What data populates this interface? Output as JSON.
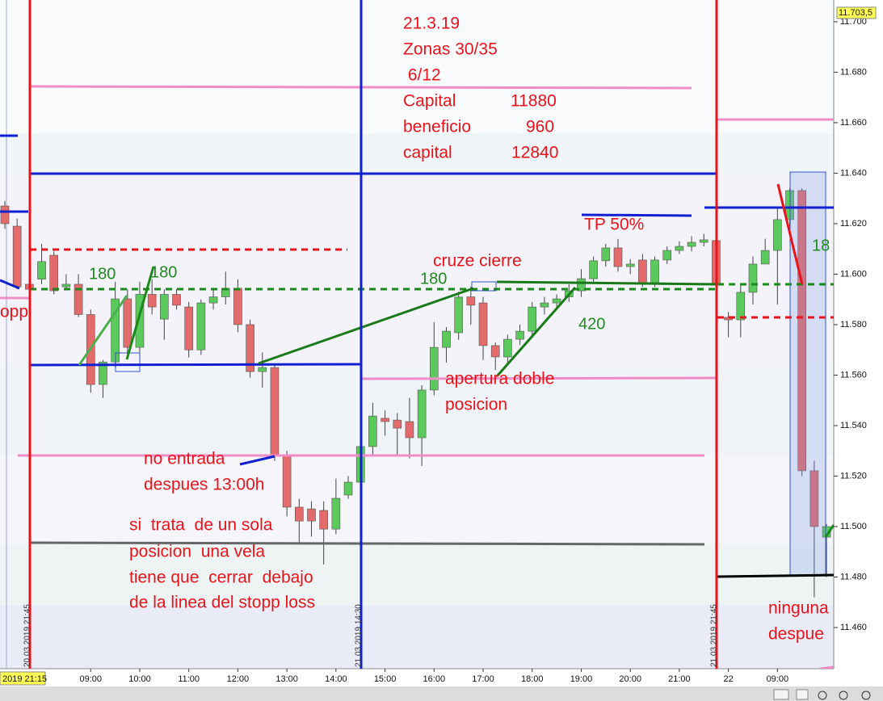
{
  "chart_data": {
    "type": "candlestick",
    "up_color": "#5cc95c",
    "down_color": "#e36b6b",
    "ylim": [
      11.4437,
      11.7086
    ],
    "yticks": [
      {
        "value": 11.46,
        "label": "11.460"
      },
      {
        "value": 11.48,
        "label": "11.480"
      },
      {
        "value": 11.5,
        "label": "11.500"
      },
      {
        "value": 11.52,
        "label": "11.520"
      },
      {
        "value": 11.54,
        "label": "11.540"
      },
      {
        "value": 11.56,
        "label": "11.560"
      },
      {
        "value": 11.58,
        "label": "11.580"
      },
      {
        "value": 11.6,
        "label": "11.600"
      },
      {
        "value": 11.62,
        "label": "11.620"
      },
      {
        "value": 11.64,
        "label": "11.640"
      },
      {
        "value": 11.66,
        "label": "11.660"
      },
      {
        "value": 11.68,
        "label": "11.680"
      },
      {
        "value": 11.7,
        "label": "11.700"
      }
    ],
    "last_price": {
      "value": 11.7035,
      "label": "11.703,5"
    },
    "cursor_label": "2019 21:15",
    "categories": [
      null,
      null,
      null,
      null,
      null,
      null,
      null,
      "09:00",
      null,
      null,
      null,
      "10:00",
      null,
      null,
      null,
      "11:00",
      null,
      null,
      null,
      "12:00",
      null,
      null,
      null,
      "13:00",
      null,
      null,
      null,
      "14:00",
      null,
      null,
      null,
      "15:00",
      null,
      null,
      null,
      "16:00",
      null,
      null,
      null,
      "17:00",
      null,
      null,
      null,
      "18:00",
      null,
      null,
      null,
      "19:00",
      null,
      null,
      null,
      "20:00",
      null,
      null,
      null,
      "21:00",
      null,
      null,
      null,
      "22",
      null,
      null,
      null,
      "09:00",
      null,
      null,
      null,
      null
    ],
    "open": [
      11.627,
      11.619,
      11.596,
      11.598,
      11.6075,
      11.595,
      11.596,
      11.584,
      11.5563,
      11.5652,
      11.5902,
      11.571,
      11.592,
      11.5822,
      11.592,
      11.587,
      11.57,
      11.5886,
      11.591,
      11.5944,
      11.58,
      11.5614,
      11.563,
      11.5278,
      11.5077,
      11.507,
      11.5064,
      11.499,
      11.5125,
      11.5176,
      11.5317,
      11.5429,
      11.5422,
      11.5416,
      11.5352,
      11.5541,
      11.571,
      11.5768,
      11.591,
      11.5886,
      11.5717,
      11.5672,
      11.5742,
      11.5774,
      11.587,
      11.5886,
      11.591,
      11.5934,
      11.5982,
      11.6053,
      11.6104,
      11.603,
      11.6056,
      11.5966,
      11.6056,
      11.6094,
      11.611,
      11.6126,
      11.6133,
      11.5829,
      11.5819,
      11.5928,
      11.604,
      11.6094,
      11.6216,
      11.6331,
      11.5221,
      11.4958
    ],
    "high": [
      11.629,
      11.622,
      11.598,
      11.612,
      11.609,
      11.6,
      11.6,
      11.586,
      11.566,
      11.597,
      11.594,
      11.597,
      11.598,
      11.594,
      11.594,
      11.589,
      11.59,
      11.594,
      11.601,
      11.598,
      11.582,
      11.569,
      11.564,
      11.53,
      11.511,
      11.51,
      11.51,
      11.519,
      11.52,
      11.534,
      11.549,
      11.546,
      11.545,
      11.551,
      11.556,
      11.581,
      11.579,
      11.593,
      11.595,
      11.591,
      11.573,
      11.576,
      11.58,
      11.589,
      11.591,
      11.592,
      11.596,
      11.602,
      11.607,
      11.612,
      11.614,
      11.606,
      11.608,
      11.607,
      11.611,
      11.613,
      11.615,
      11.616,
      11.614,
      11.585,
      11.596,
      11.607,
      11.614,
      11.626,
      11.634,
      11.634,
      11.526,
      11.501
    ],
    "low": [
      11.618,
      11.594,
      11.593,
      11.596,
      11.592,
      11.594,
      11.583,
      11.553,
      11.551,
      11.563,
      11.567,
      11.566,
      11.584,
      11.574,
      11.586,
      11.567,
      11.568,
      11.586,
      11.588,
      11.577,
      11.559,
      11.555,
      11.526,
      11.504,
      11.493,
      11.496,
      11.485,
      11.497,
      11.511,
      11.515,
      11.528,
      11.536,
      11.528,
      11.527,
      11.524,
      11.552,
      11.565,
      11.574,
      11.58,
      11.566,
      11.562,
      11.565,
      11.572,
      11.575,
      11.584,
      11.586,
      11.589,
      11.591,
      11.596,
      11.603,
      11.601,
      11.6,
      11.595,
      11.595,
      11.604,
      11.608,
      11.609,
      11.611,
      11.594,
      11.575,
      11.575,
      11.588,
      11.604,
      11.588,
      11.619,
      11.52,
      11.472,
      11.48
    ],
    "close": [
      11.62,
      11.595,
      11.594,
      11.605,
      11.5934,
      11.596,
      11.584,
      11.5563,
      11.5652,
      11.5902,
      11.571,
      11.592,
      11.587,
      11.592,
      11.5877,
      11.57,
      11.5886,
      11.591,
      11.5944,
      11.58,
      11.5614,
      11.563,
      11.5278,
      11.5077,
      11.5022,
      11.5022,
      11.499,
      11.5112,
      11.5176,
      11.5317,
      11.5438,
      11.5416,
      11.539,
      11.5352,
      11.5541,
      11.571,
      11.5774,
      11.5909,
      11.5877,
      11.5717,
      11.5672,
      11.5742,
      11.5774,
      11.587,
      11.5886,
      11.5902,
      11.5934,
      11.5982,
      11.6053,
      11.6104,
      11.603,
      11.604,
      11.5966,
      11.6056,
      11.6094,
      11.611,
      11.6126,
      11.6136,
      11.596,
      11.5819,
      11.5928,
      11.604,
      11.6094,
      11.6216,
      11.6331,
      11.5221,
      11.5,
      11.5
    ],
    "info": {
      "date": "21.3.19",
      "zones": "Zonas 30/35",
      "ratio": " 6/12",
      "rows": [
        {
          "label": "Capital",
          "value": 11880
        },
        {
          "label": "beneficio",
          "value": 960
        },
        {
          "label": "capital",
          "value": 12840
        }
      ]
    },
    "annotations": [
      "180",
      "180",
      "180",
      "cruze cierre",
      "TP 50%",
      "420",
      "apertura doble",
      "posicion",
      "no entrada",
      "despues 13:00h",
      "si  trata  de un sola",
      "posicion  una vela",
      "tiene que  cerrar  debajo",
      "de la linea del stopp loss",
      "ninguna",
      "despue",
      "18",
      "opp"
    ],
    "vertical_markers": [
      "20.03.2019 21:45",
      "21.03.2019 14:30",
      "21.03.2019 21:45"
    ]
  }
}
